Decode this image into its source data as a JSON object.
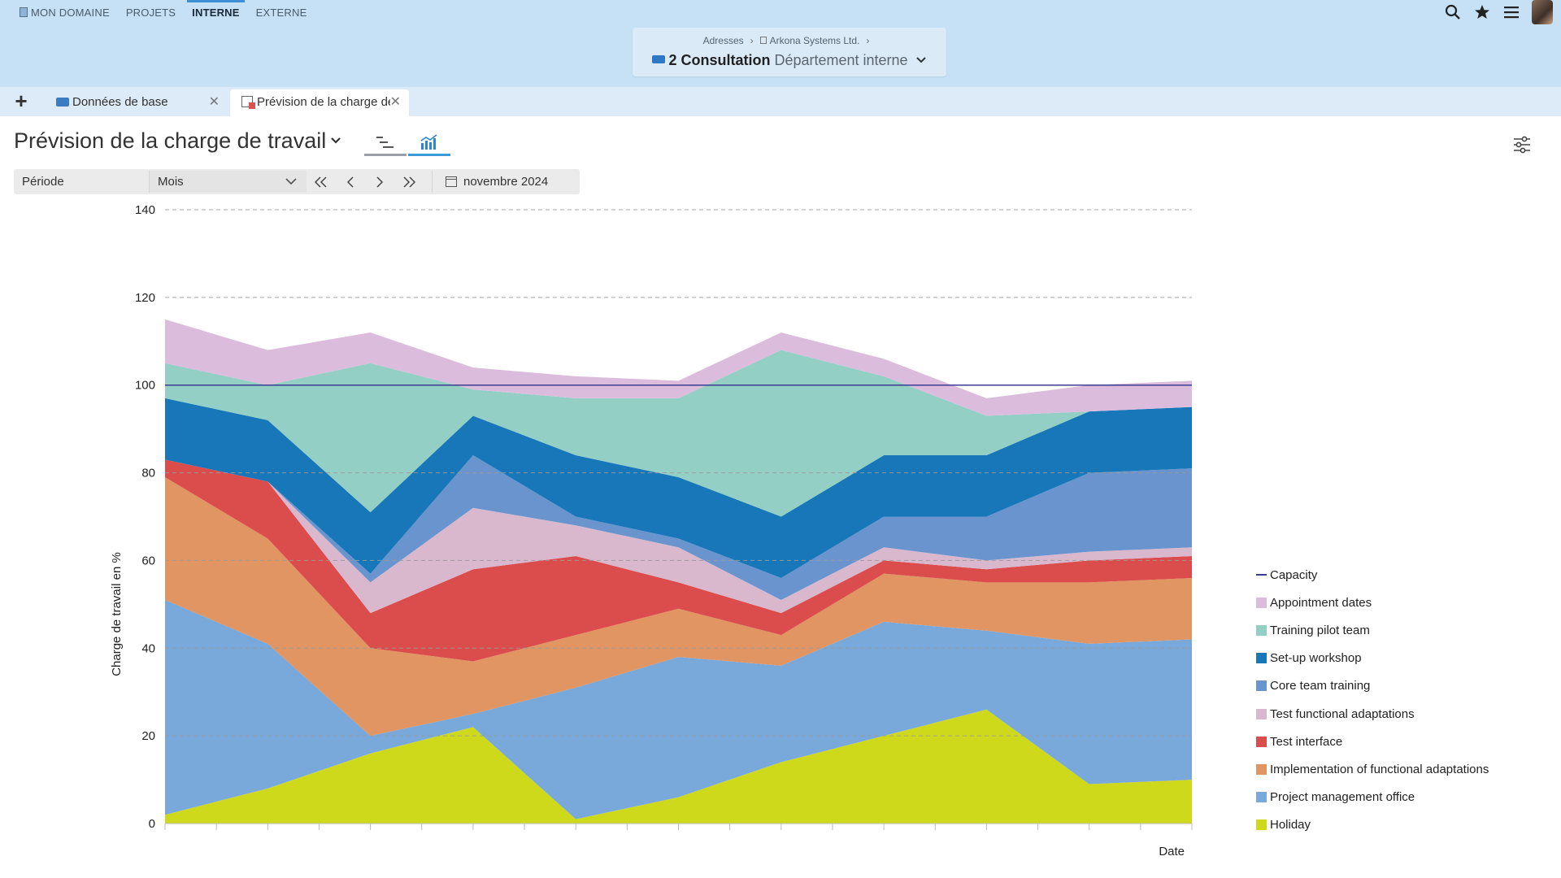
{
  "topnav": {
    "items": [
      "MON DOMAINE",
      "PROJETS",
      "INTERNE",
      "EXTERNE"
    ],
    "active": "INTERNE"
  },
  "top_icons": [
    "search-icon",
    "star-icon",
    "menu-icon",
    "user-avatar"
  ],
  "breadcrumb": {
    "path": [
      "Adresses",
      "Arkona Systems Ltd."
    ],
    "title_strong": "2 Consultation",
    "title_light": "Département interne"
  },
  "tabs": [
    {
      "label": "Données de base",
      "icon": "contact-card-icon"
    },
    {
      "label": "Prévision de la charge de travail",
      "icon": "report-icon",
      "active": true
    }
  ],
  "page": {
    "title": "Prévision de la charge de travail"
  },
  "toolbar": {
    "period_label": "Période",
    "period_value": "Mois",
    "date_value": "novembre 2024"
  },
  "colors": {
    "accent": "#3d9ad9",
    "header_bg": "#c6e1f5",
    "tabbar_bg": "#dcebf7"
  },
  "chart_data": {
    "type": "area",
    "stacked": true,
    "ylabel": "Charge de travail en %",
    "xlabel": "Date",
    "ylim": [
      0,
      140
    ],
    "yticks": [
      0,
      20,
      40,
      60,
      80,
      100,
      120,
      140
    ],
    "grid": "horizontal dashed",
    "legend_position": "right",
    "x_points": 11,
    "capacity": {
      "name": "Capacity",
      "value": 100,
      "color": "#3d3d8f"
    },
    "series": [
      {
        "name": "Holiday",
        "color": "#cfd91b",
        "values": [
          2,
          8,
          16,
          22,
          1,
          6,
          14,
          20,
          26,
          9,
          10
        ]
      },
      {
        "name": "Project management office",
        "color": "#79a8da",
        "values": [
          49,
          33,
          4,
          3,
          30,
          32,
          22,
          26,
          18,
          32,
          32
        ]
      },
      {
        "name": "Implementation of functional adaptations",
        "color": "#e09563",
        "values": [
          28,
          24,
          20,
          12,
          12,
          11,
          7,
          11,
          11,
          14,
          14
        ]
      },
      {
        "name": "Test interface",
        "color": "#db4c4c",
        "values": [
          4,
          13,
          8,
          21,
          18,
          6,
          5,
          3,
          3,
          5,
          5
        ]
      },
      {
        "name": "Test functional adaptations",
        "color": "#d9b8ce",
        "values": [
          0,
          0,
          7,
          14,
          7,
          8,
          3,
          3,
          2,
          2,
          2
        ]
      },
      {
        "name": "Core team training",
        "color": "#6a94cd",
        "values": [
          0,
          0,
          2,
          12,
          2,
          2,
          5,
          7,
          10,
          18,
          18
        ]
      },
      {
        "name": "Set-up workshop",
        "color": "#1777b8",
        "values": [
          14,
          14,
          14,
          9,
          14,
          14,
          14,
          14,
          14,
          14,
          14
        ]
      },
      {
        "name": "Training pilot team",
        "color": "#93cfc5",
        "values": [
          8,
          8,
          34,
          6,
          13,
          18,
          38,
          18,
          9,
          0,
          0
        ]
      },
      {
        "name": "Appointment dates",
        "color": "#dcbcdc",
        "values": [
          10,
          8,
          7,
          5,
          5,
          4,
          4,
          4,
          4,
          6,
          6
        ]
      }
    ]
  }
}
